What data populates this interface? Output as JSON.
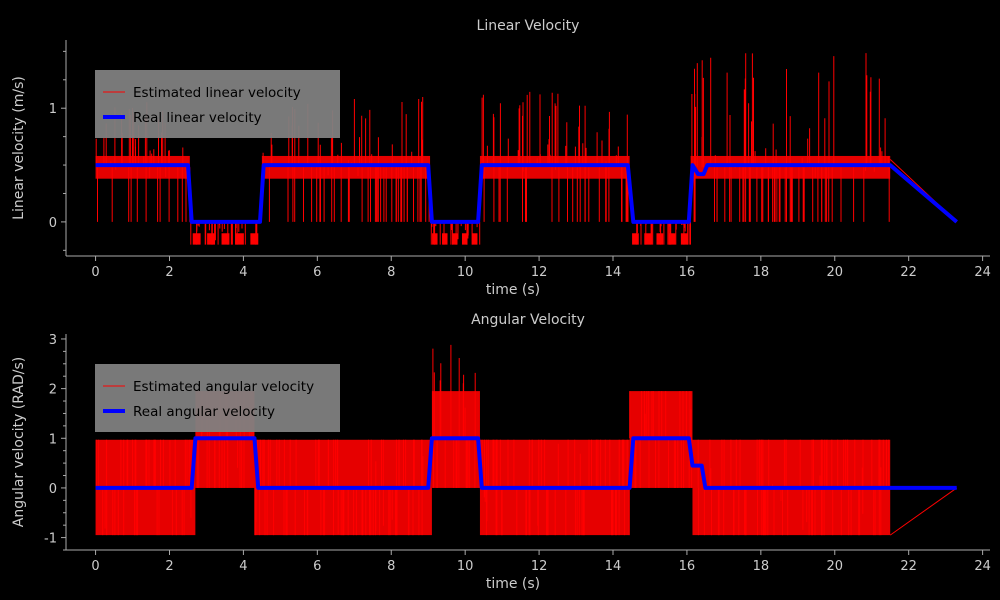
{
  "chart_data": [
    {
      "type": "line",
      "title": "Linear Velocity",
      "xlabel": "time (s)",
      "ylabel": "Linear velocity (m/s)",
      "xlim": [
        -0.8,
        24.2
      ],
      "ylim": [
        -0.3,
        1.6
      ],
      "xticks": [
        0,
        2,
        4,
        6,
        8,
        10,
        12,
        14,
        16,
        18,
        20,
        22,
        24
      ],
      "yticks": [
        0,
        1
      ],
      "grid": false,
      "legend": "upper-left",
      "series": [
        {
          "name": "Estimated linear velocity",
          "color": "#ff0000",
          "style": "noisy",
          "segments": [
            {
              "from": 0.0,
              "to": 2.55,
              "base": 0.48,
              "band": [
                0.38,
                0.58
              ],
              "low": 0.0,
              "high": 1.1
            },
            {
              "from": 2.55,
              "to": 4.5,
              "base": 0.0,
              "band": [
                -0.2,
                -0.1
              ],
              "low": -0.2,
              "high": 0.0
            },
            {
              "from": 4.5,
              "to": 9.05,
              "base": 0.48,
              "band": [
                0.38,
                0.58
              ],
              "low": 0.0,
              "high": 1.15
            },
            {
              "from": 9.05,
              "to": 10.4,
              "base": 0.0,
              "band": [
                -0.2,
                -0.1
              ],
              "low": -0.2,
              "high": 0.0
            },
            {
              "from": 10.4,
              "to": 14.45,
              "base": 0.48,
              "band": [
                0.38,
                0.58
              ],
              "low": 0.0,
              "high": 1.15
            },
            {
              "from": 14.45,
              "to": 16.1,
              "base": 0.0,
              "band": [
                -0.2,
                -0.1
              ],
              "low": -0.2,
              "high": 0.0
            },
            {
              "from": 16.1,
              "to": 21.5,
              "base": 0.48,
              "band": [
                0.38,
                0.58
              ],
              "low": 0.0,
              "high": 1.5
            }
          ],
          "tail": [
            [
              21.5,
              0.55
            ],
            [
              23.3,
              0.0
            ]
          ]
        },
        {
          "name": "Real linear velocity",
          "color": "#0000ff",
          "points": [
            [
              0,
              0.5
            ],
            [
              2.5,
              0.5
            ],
            [
              2.6,
              0.0
            ],
            [
              4.45,
              0.0
            ],
            [
              4.55,
              0.5
            ],
            [
              9.0,
              0.5
            ],
            [
              9.1,
              0.0
            ],
            [
              10.35,
              0.0
            ],
            [
              10.45,
              0.5
            ],
            [
              14.4,
              0.5
            ],
            [
              14.55,
              0.0
            ],
            [
              16.05,
              0.0
            ],
            [
              16.15,
              0.5
            ],
            [
              16.3,
              0.42
            ],
            [
              16.45,
              0.42
            ],
            [
              16.55,
              0.5
            ],
            [
              21.5,
              0.5
            ],
            [
              23.3,
              0.0
            ]
          ]
        }
      ]
    },
    {
      "type": "line",
      "title": "Angular Velocity",
      "xlabel": "time (s)",
      "ylabel": "Angular velocity (RAD/s)",
      "xlim": [
        -0.8,
        24.2
      ],
      "ylim": [
        -1.25,
        3.1
      ],
      "xticks": [
        0,
        2,
        4,
        6,
        8,
        10,
        12,
        14,
        16,
        18,
        20,
        22,
        24
      ],
      "yticks": [
        -1,
        0,
        1,
        2,
        3
      ],
      "grid": false,
      "legend": "upper-left",
      "series": [
        {
          "name": "Estimated angular velocity",
          "color": "#ff0000",
          "style": "noisy",
          "segments": [
            {
              "from": 0.0,
              "to": 2.7,
              "base": 0.0,
              "band": [
                -0.95,
                0.97
              ],
              "low": -0.95,
              "high": 0.97
            },
            {
              "from": 2.7,
              "to": 4.3,
              "base": 1.0,
              "band": [
                0.0,
                1.95
              ],
              "low": 0.0,
              "high": 1.95
            },
            {
              "from": 4.3,
              "to": 9.1,
              "base": 0.0,
              "band": [
                -0.95,
                0.97
              ],
              "low": -0.95,
              "high": 0.97
            },
            {
              "from": 9.1,
              "to": 10.4,
              "base": 1.0,
              "band": [
                0.0,
                1.95
              ],
              "low": 0.0,
              "high": 2.9
            },
            {
              "from": 10.4,
              "to": 14.45,
              "base": 0.0,
              "band": [
                -0.95,
                0.97
              ],
              "low": -0.95,
              "high": 0.97
            },
            {
              "from": 14.45,
              "to": 16.15,
              "base": 1.0,
              "band": [
                0.0,
                1.95
              ],
              "low": 0.0,
              "high": 1.95
            },
            {
              "from": 16.15,
              "to": 21.5,
              "base": 0.0,
              "band": [
                -0.95,
                0.97
              ],
              "low": -0.95,
              "high": 0.97
            }
          ],
          "tail": [
            [
              21.5,
              -0.95
            ],
            [
              23.3,
              0.0
            ]
          ]
        },
        {
          "name": "Real angular velocity",
          "color": "#0000ff",
          "points": [
            [
              0,
              0.0
            ],
            [
              2.6,
              0.0
            ],
            [
              2.7,
              1.0
            ],
            [
              4.3,
              1.0
            ],
            [
              4.4,
              0.0
            ],
            [
              9.0,
              0.0
            ],
            [
              9.1,
              1.0
            ],
            [
              10.35,
              1.0
            ],
            [
              10.45,
              0.0
            ],
            [
              14.45,
              0.0
            ],
            [
              14.55,
              1.0
            ],
            [
              16.05,
              1.0
            ],
            [
              16.15,
              0.45
            ],
            [
              16.4,
              0.45
            ],
            [
              16.5,
              0.0
            ],
            [
              21.5,
              0.0
            ],
            [
              23.3,
              0.0
            ]
          ]
        }
      ]
    }
  ]
}
